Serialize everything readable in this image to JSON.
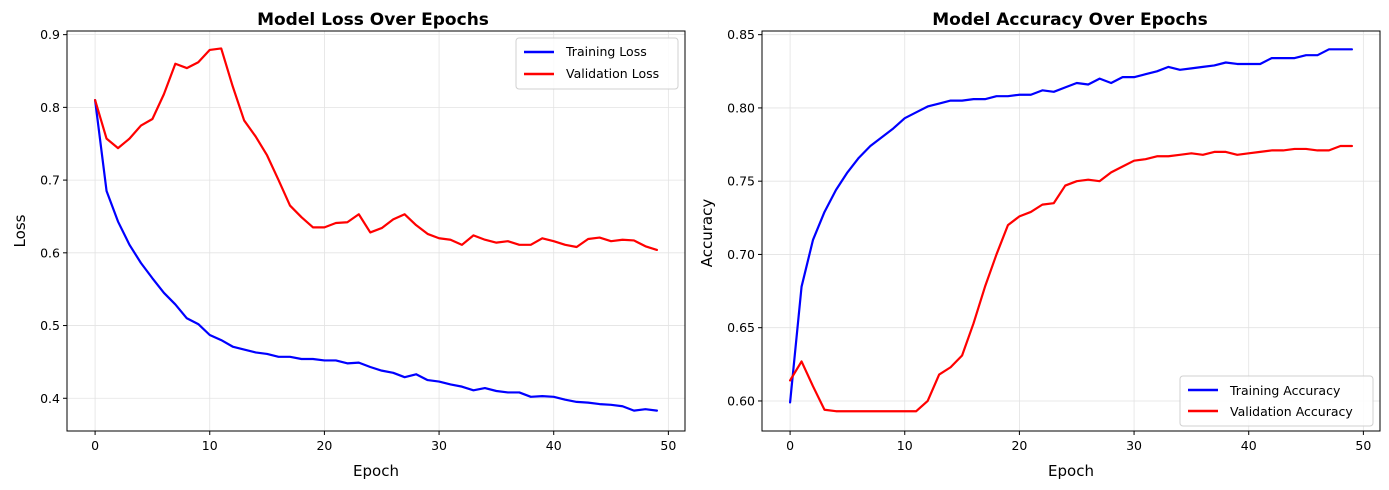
{
  "colors": {
    "training": "#0000ff",
    "validation": "#ff0000",
    "grid": "#e3e3e3",
    "axis": "#000000"
  },
  "chart_data": [
    {
      "type": "line",
      "title": "Model Loss Over Epochs",
      "xlabel": "Epoch",
      "ylabel": "Loss",
      "xlim": [
        -2.45,
        51.45
      ],
      "ylim": [
        0.355,
        0.905
      ],
      "xticks": [
        0,
        10,
        20,
        30,
        40,
        50
      ],
      "xtick_labels": [
        "0",
        "10",
        "20",
        "30",
        "40",
        "50"
      ],
      "yticks": [
        0.4,
        0.5,
        0.6,
        0.7,
        0.8,
        0.9
      ],
      "ytick_labels": [
        "0.4",
        "0.5",
        "0.6",
        "0.7",
        "0.8",
        "0.9"
      ],
      "grid": true,
      "legend_position": "top-right",
      "x": [
        0,
        1,
        2,
        3,
        4,
        5,
        6,
        7,
        8,
        9,
        10,
        11,
        12,
        13,
        14,
        15,
        16,
        17,
        18,
        19,
        20,
        21,
        22,
        23,
        24,
        25,
        26,
        27,
        28,
        29,
        30,
        31,
        32,
        33,
        34,
        35,
        36,
        37,
        38,
        39,
        40,
        41,
        42,
        43,
        44,
        45,
        46,
        47,
        48,
        49
      ],
      "series": [
        {
          "name": "Training Loss",
          "color": "#0000ff",
          "values": [
            0.81,
            0.685,
            0.643,
            0.611,
            0.586,
            0.565,
            0.545,
            0.529,
            0.51,
            0.502,
            0.487,
            0.48,
            0.471,
            0.467,
            0.463,
            0.461,
            0.457,
            0.457,
            0.454,
            0.454,
            0.452,
            0.452,
            0.448,
            0.449,
            0.443,
            0.438,
            0.435,
            0.429,
            0.433,
            0.425,
            0.423,
            0.419,
            0.416,
            0.411,
            0.414,
            0.41,
            0.408,
            0.408,
            0.402,
            0.403,
            0.402,
            0.398,
            0.395,
            0.394,
            0.392,
            0.391,
            0.389,
            0.383,
            0.385,
            0.383
          ]
        },
        {
          "name": "Validation Loss",
          "color": "#ff0000",
          "values": [
            0.81,
            0.757,
            0.744,
            0.757,
            0.775,
            0.784,
            0.818,
            0.86,
            0.854,
            0.862,
            0.879,
            0.881,
            0.829,
            0.782,
            0.76,
            0.734,
            0.7,
            0.665,
            0.649,
            0.635,
            0.635,
            0.641,
            0.642,
            0.653,
            0.628,
            0.634,
            0.646,
            0.653,
            0.638,
            0.626,
            0.62,
            0.618,
            0.611,
            0.624,
            0.618,
            0.614,
            0.616,
            0.611,
            0.611,
            0.62,
            0.616,
            0.611,
            0.608,
            0.619,
            0.621,
            0.616,
            0.618,
            0.617,
            0.609,
            0.604
          ]
        }
      ]
    },
    {
      "type": "line",
      "title": "Model Accuracy Over Epochs",
      "xlabel": "Epoch",
      "ylabel": "Accuracy",
      "xlim": [
        -2.45,
        51.45
      ],
      "ylim": [
        0.5795,
        0.8525
      ],
      "xticks": [
        0,
        10,
        20,
        30,
        40,
        50
      ],
      "xtick_labels": [
        "0",
        "10",
        "20",
        "30",
        "40",
        "50"
      ],
      "yticks": [
        0.6,
        0.65,
        0.7,
        0.75,
        0.8,
        0.85
      ],
      "ytick_labels": [
        "0.60",
        "0.65",
        "0.70",
        "0.75",
        "0.80",
        "0.85"
      ],
      "grid": true,
      "legend_position": "bottom-right",
      "x": [
        0,
        1,
        2,
        3,
        4,
        5,
        6,
        7,
        8,
        9,
        10,
        11,
        12,
        13,
        14,
        15,
        16,
        17,
        18,
        19,
        20,
        21,
        22,
        23,
        24,
        25,
        26,
        27,
        28,
        29,
        30,
        31,
        32,
        33,
        34,
        35,
        36,
        37,
        38,
        39,
        40,
        41,
        42,
        43,
        44,
        45,
        46,
        47,
        48,
        49
      ],
      "series": [
        {
          "name": "Training Accuracy",
          "color": "#0000ff",
          "values": [
            0.599,
            0.678,
            0.71,
            0.729,
            0.744,
            0.756,
            0.766,
            0.774,
            0.78,
            0.786,
            0.793,
            0.797,
            0.801,
            0.803,
            0.805,
            0.805,
            0.806,
            0.806,
            0.808,
            0.808,
            0.809,
            0.809,
            0.812,
            0.811,
            0.814,
            0.817,
            0.816,
            0.82,
            0.817,
            0.821,
            0.821,
            0.823,
            0.825,
            0.828,
            0.826,
            0.827,
            0.828,
            0.829,
            0.831,
            0.83,
            0.83,
            0.83,
            0.834,
            0.834,
            0.834,
            0.836,
            0.836,
            0.84,
            0.84,
            0.84
          ]
        },
        {
          "name": "Validation Accuracy",
          "color": "#ff0000",
          "values": [
            0.614,
            0.627,
            0.61,
            0.594,
            0.593,
            0.593,
            0.593,
            0.593,
            0.593,
            0.593,
            0.593,
            0.593,
            0.6,
            0.618,
            0.623,
            0.631,
            0.653,
            0.678,
            0.7,
            0.72,
            0.726,
            0.729,
            0.734,
            0.735,
            0.747,
            0.75,
            0.751,
            0.75,
            0.756,
            0.76,
            0.764,
            0.765,
            0.767,
            0.767,
            0.768,
            0.769,
            0.768,
            0.77,
            0.77,
            0.768,
            0.769,
            0.77,
            0.771,
            0.771,
            0.772,
            0.772,
            0.771,
            0.771,
            0.774,
            0.774
          ]
        }
      ]
    }
  ]
}
